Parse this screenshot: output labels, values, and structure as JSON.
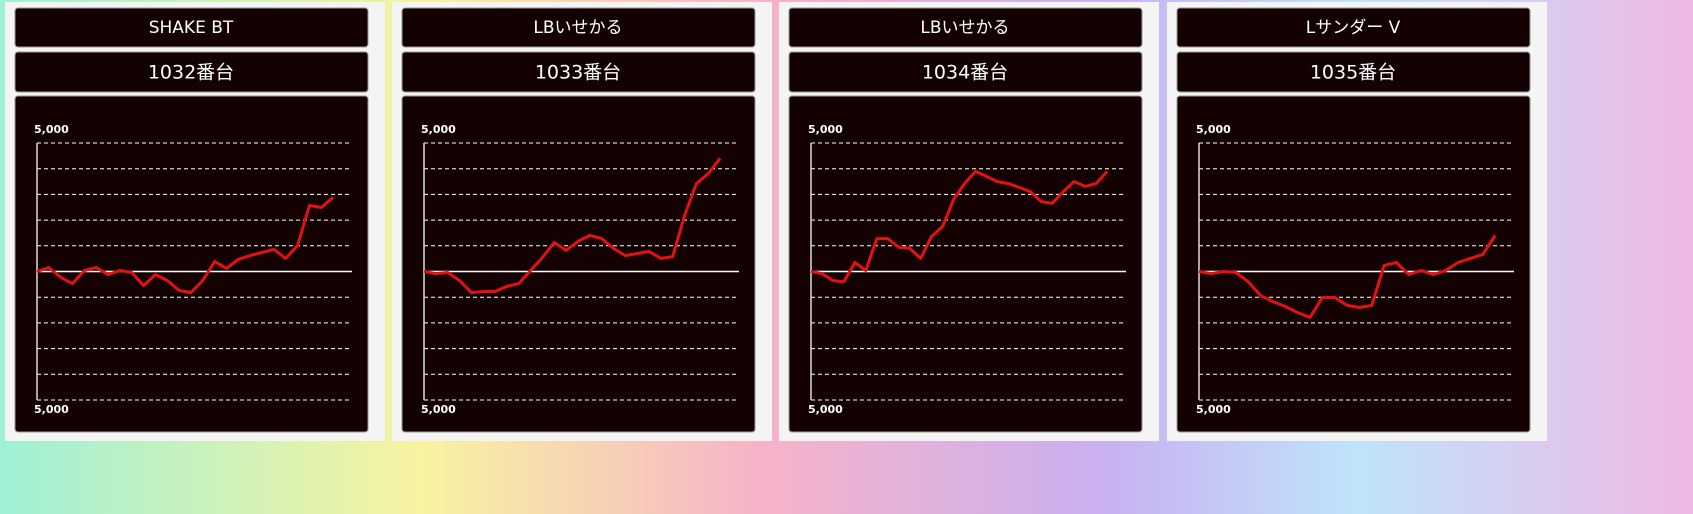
{
  "chart_data": [
    {
      "type": "line",
      "title": "SHAKE BT",
      "subtitle": "1032番台",
      "color": "#e31212",
      "grid": true,
      "ylim": [
        -5000,
        5000
      ],
      "yticks": [
        {
          "value": 5000,
          "label": "5,000"
        },
        {
          "value": 4000,
          "label": null
        },
        {
          "value": 3000,
          "label": null
        },
        {
          "value": 2000,
          "label": null
        },
        {
          "value": 1000,
          "label": null
        },
        {
          "value": 0,
          "label": null
        },
        {
          "value": -1000,
          "label": null
        },
        {
          "value": -2000,
          "label": null
        },
        {
          "value": -3000,
          "label": null
        },
        {
          "value": -4000,
          "label": null
        },
        {
          "value": -5000,
          "label": "5,000"
        }
      ],
      "values": [
        0,
        150,
        -230,
        -470,
        40,
        150,
        -120,
        40,
        -40,
        -550,
        -120,
        -350,
        -740,
        -820,
        -350,
        390,
        120,
        470,
        620,
        740,
        860,
        510,
        1010,
        2570,
        2490,
        2880
      ]
    },
    {
      "type": "line",
      "title": "LBいせかる",
      "subtitle": "1033番台",
      "color": "#e31212",
      "grid": true,
      "ylim": [
        -5000,
        5000
      ],
      "yticks": [
        {
          "value": 5000,
          "label": "5,000"
        },
        {
          "value": 4000,
          "label": null
        },
        {
          "value": 3000,
          "label": null
        },
        {
          "value": 2000,
          "label": null
        },
        {
          "value": 1000,
          "label": null
        },
        {
          "value": 0,
          "label": null
        },
        {
          "value": -1000,
          "label": null
        },
        {
          "value": -2000,
          "label": null
        },
        {
          "value": -3000,
          "label": null
        },
        {
          "value": -4000,
          "label": null
        },
        {
          "value": -5000,
          "label": "5,000"
        }
      ],
      "values": [
        0,
        -80,
        -40,
        -350,
        -820,
        -780,
        -780,
        -580,
        -470,
        40,
        540,
        1130,
        820,
        1170,
        1400,
        1280,
        900,
        620,
        700,
        780,
        510,
        580,
        2180,
        3420,
        3810,
        4400
      ]
    },
    {
      "type": "line",
      "title": "LBいせかる",
      "subtitle": "1034番台",
      "color": "#e31212",
      "grid": true,
      "ylim": [
        -5000,
        5000
      ],
      "yticks": [
        {
          "value": 5000,
          "label": "5,000"
        },
        {
          "value": 4000,
          "label": null
        },
        {
          "value": 3000,
          "label": null
        },
        {
          "value": 2000,
          "label": null
        },
        {
          "value": 1000,
          "label": null
        },
        {
          "value": 0,
          "label": null
        },
        {
          "value": -1000,
          "label": null
        },
        {
          "value": -2000,
          "label": null
        },
        {
          "value": -3000,
          "label": null
        },
        {
          "value": -4000,
          "label": null
        },
        {
          "value": -5000,
          "label": "5,000"
        }
      ],
      "values": [
        0,
        -80,
        -350,
        -400,
        350,
        40,
        1280,
        1280,
        940,
        900,
        510,
        1360,
        1750,
        2800,
        3420,
        3890,
        3700,
        3500,
        3420,
        3270,
        3110,
        2720,
        2650,
        3110,
        3500,
        3310,
        3420,
        3890
      ]
    },
    {
      "type": "line",
      "title": "Lサンダー V",
      "subtitle": "1035番台",
      "color": "#e31212",
      "grid": true,
      "ylim": [
        -5000,
        5000
      ],
      "yticks": [
        {
          "value": 5000,
          "label": "5,000"
        },
        {
          "value": 4000,
          "label": null
        },
        {
          "value": 3000,
          "label": null
        },
        {
          "value": 2000,
          "label": null
        },
        {
          "value": 1000,
          "label": null
        },
        {
          "value": 0,
          "label": null
        },
        {
          "value": -1000,
          "label": null
        },
        {
          "value": -2000,
          "label": null
        },
        {
          "value": -3000,
          "label": null
        },
        {
          "value": -4000,
          "label": null
        },
        {
          "value": -5000,
          "label": "5,000"
        }
      ],
      "values": [
        0,
        -80,
        0,
        -40,
        -400,
        -940,
        -1170,
        -1360,
        -1600,
        -1790,
        -1010,
        -1010,
        -1320,
        -1400,
        -1320,
        230,
        350,
        -120,
        40,
        -120,
        40,
        350,
        510,
        660,
        1400
      ]
    }
  ]
}
